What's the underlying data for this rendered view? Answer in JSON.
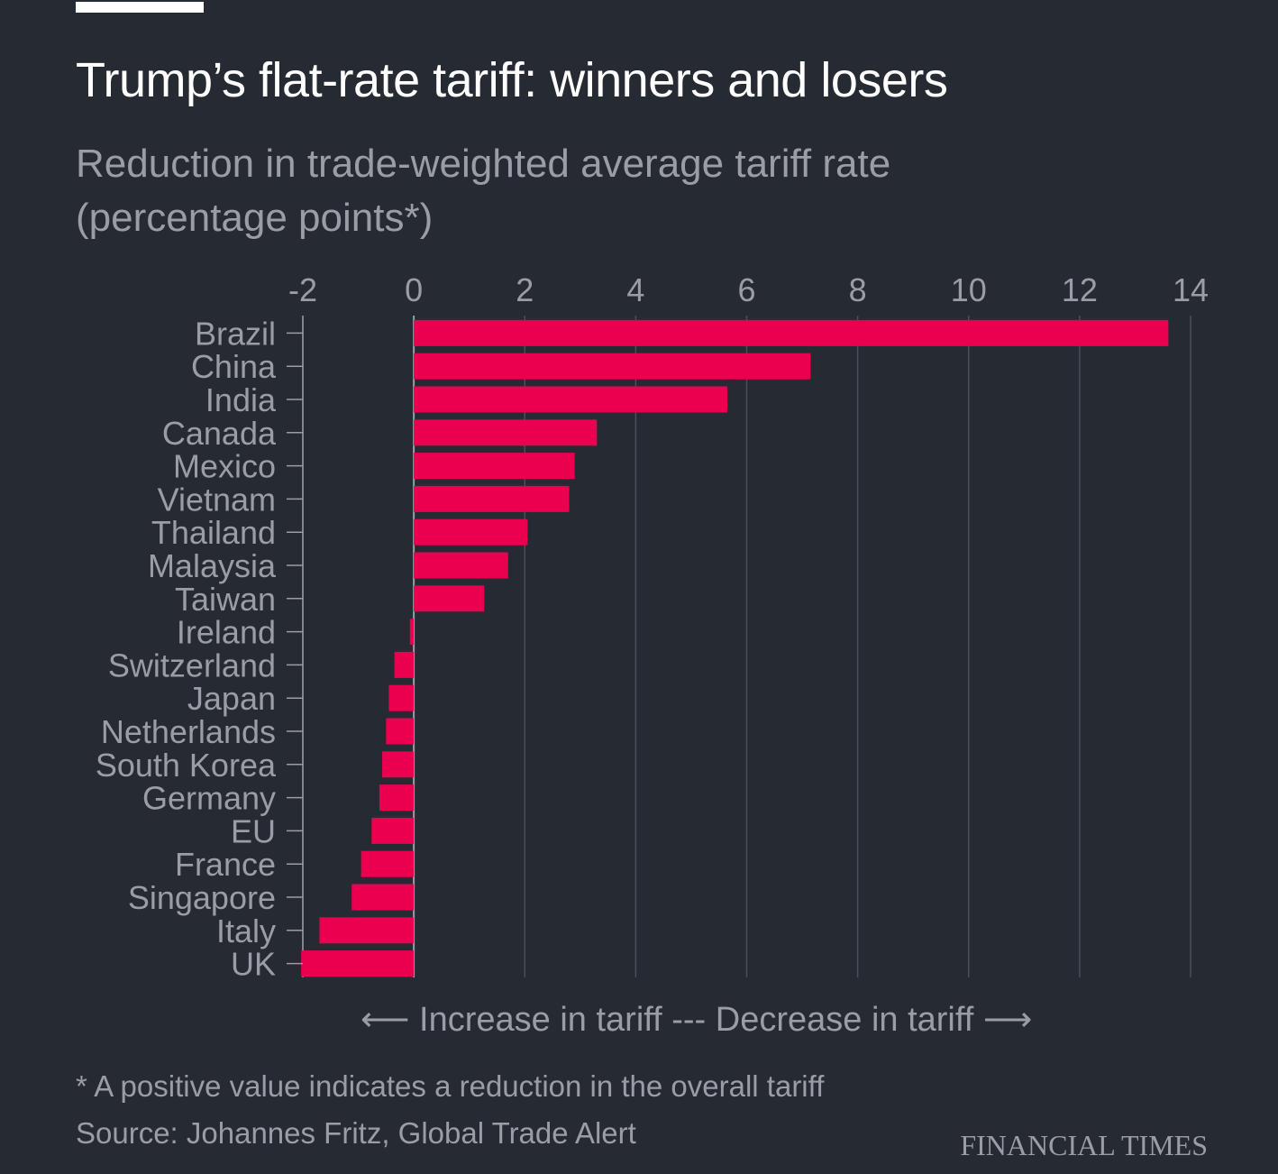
{
  "header": {
    "title": "Trump’s flat-rate tariff: winners and losers",
    "subtitle": "Reduction in trade-weighted average tariff rate (percentage points*)"
  },
  "footer": {
    "direction_label": "⟵ Increase in tariff --- Decrease in tariff ⟶",
    "footnote": "* A positive value indicates a reduction in the overall tariff",
    "source": "Source: Johannes Fritz, Global Trade Alert",
    "brand": "FINANCIAL TIMES"
  },
  "colors": {
    "background": "#262a33",
    "bar": "#eb0050",
    "grid": "#4a4e57",
    "text": "#9a9da5",
    "title": "#ffffff"
  },
  "chart_data": {
    "type": "bar",
    "orientation": "horizontal",
    "title": "Trump’s flat-rate tariff: winners and losers",
    "subtitle": "Reduction in trade-weighted average tariff rate (percentage points*)",
    "xlabel": "",
    "ylabel": "",
    "xlim": [
      -2,
      14
    ],
    "xticks": [
      -2,
      0,
      2,
      4,
      6,
      8,
      10,
      12,
      14
    ],
    "grid": true,
    "categories": [
      "Brazil",
      "China",
      "India",
      "Canada",
      "Mexico",
      "Vietnam",
      "Thailand",
      "Malaysia",
      "Taiwan",
      "Ireland",
      "Switzerland",
      "Japan",
      "Netherlands",
      "South Korea",
      "Germany",
      "EU",
      "France",
      "Singapore",
      "Italy",
      "UK"
    ],
    "values": [
      13.6,
      7.15,
      5.65,
      3.3,
      2.9,
      2.8,
      2.05,
      1.7,
      1.27,
      -0.07,
      -0.35,
      -0.45,
      -0.5,
      -0.57,
      -0.62,
      -0.76,
      -0.95,
      -1.12,
      -1.7,
      -2.03
    ],
    "annotation": "⟵ Increase in tariff --- Decrease in tariff ⟶",
    "footnote": "* A positive value indicates a reduction in the overall tariff",
    "source": "Source: Johannes Fritz, Global Trade Alert"
  }
}
